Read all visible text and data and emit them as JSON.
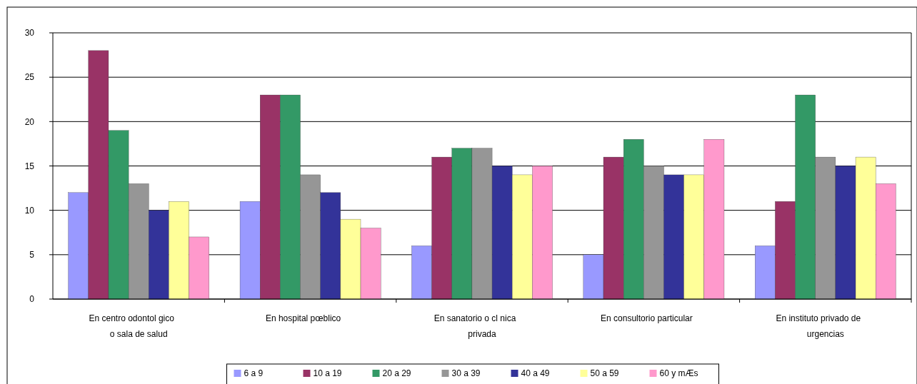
{
  "chart_data": {
    "type": "bar",
    "categories": [
      "En centro odontol gico\no sala de salud",
      "En hospital pœblico",
      "En sanatorio o cl nica\nprivada",
      "En consultorio particular",
      "En instituto privado de\nurgencias"
    ],
    "series": [
      {
        "name": "6 a 9",
        "color": "#9999ff",
        "values": [
          12,
          11,
          6,
          5,
          6
        ]
      },
      {
        "name": "10 a 19",
        "color": "#993366",
        "values": [
          28,
          23,
          16,
          16,
          11
        ]
      },
      {
        "name": "20 a 29",
        "color": "#339966",
        "values": [
          19,
          23,
          17,
          18,
          23
        ]
      },
      {
        "name": "30 a 39",
        "color": "#969696",
        "values": [
          13,
          14,
          17,
          15,
          16
        ]
      },
      {
        "name": "40 a 49",
        "color": "#333399",
        "values": [
          10,
          12,
          15,
          14,
          15
        ]
      },
      {
        "name": "50 a 59",
        "color": "#ffff99",
        "values": [
          11,
          9,
          14,
          14,
          16
        ]
      },
      {
        "name": "60 y mÆs",
        "color": "#ff99cc",
        "values": [
          7,
          8,
          15,
          18,
          13
        ]
      }
    ],
    "ylim": [
      0,
      30
    ],
    "yticks": [
      0,
      5,
      10,
      15,
      20,
      25,
      30
    ],
    "grid": "y",
    "legend": "bottom"
  }
}
